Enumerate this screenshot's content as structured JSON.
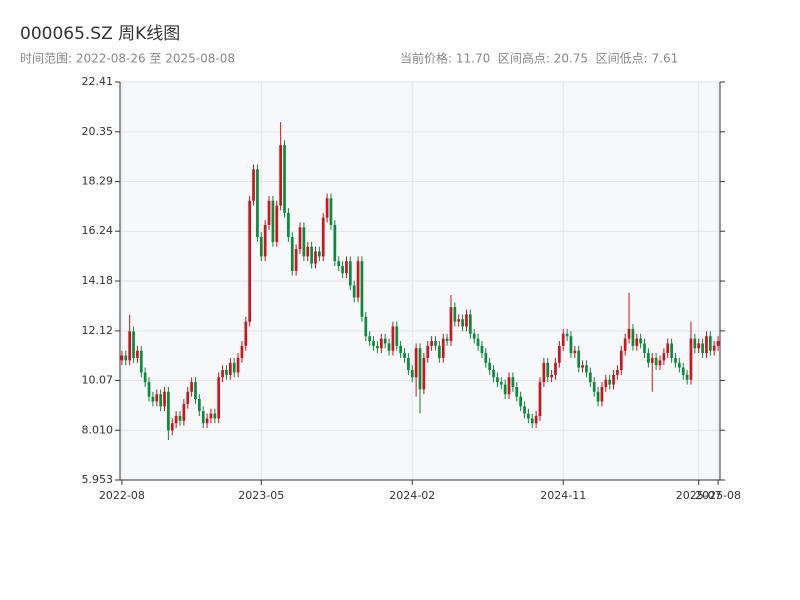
{
  "chart_data": {
    "type": "candlestick",
    "title": "000065.SZ 周K线图",
    "subtitle": "时间范围: 2022-08-26 至 2025-08-08",
    "stats": "当前价格: 11.70  区间高点: 20.75  区间低点: 7.61",
    "up_color": "#c8161d",
    "down_color": "#0b8a3c",
    "grid": true,
    "ylim": [
      5.953,
      22.41
    ],
    "yticks": [
      5.953,
      {
        "value": 8.01,
        "label": "8.010"
      },
      10.07,
      12.12,
      14.18,
      16.24,
      18.29,
      20.35,
      22.41
    ],
    "categories": [
      "2022-08",
      null,
      null,
      null,
      null,
      null,
      null,
      null,
      null,
      null,
      null,
      null,
      null,
      null,
      null,
      null,
      null,
      null,
      null,
      null,
      null,
      null,
      null,
      null,
      null,
      null,
      null,
      null,
      null,
      null,
      null,
      null,
      null,
      null,
      null,
      null,
      "2023-05",
      null,
      null,
      null,
      null,
      null,
      null,
      null,
      null,
      null,
      null,
      null,
      null,
      null,
      null,
      null,
      null,
      null,
      null,
      null,
      null,
      null,
      null,
      null,
      null,
      null,
      null,
      null,
      null,
      null,
      null,
      null,
      null,
      null,
      null,
      null,
      null,
      null,
      null,
      "2024-02",
      null,
      null,
      null,
      null,
      null,
      null,
      null,
      null,
      null,
      null,
      null,
      null,
      null,
      null,
      null,
      null,
      null,
      null,
      null,
      null,
      null,
      null,
      null,
      null,
      null,
      null,
      null,
      null,
      null,
      null,
      null,
      null,
      null,
      null,
      null,
      null,
      null,
      null,
      "2024-11",
      null,
      null,
      null,
      null,
      null,
      null,
      null,
      null,
      null,
      null,
      null,
      null,
      null,
      null,
      null,
      null,
      null,
      null,
      null,
      null,
      null,
      null,
      null,
      null,
      null,
      null,
      null,
      null,
      null,
      null,
      null,
      null,
      null,
      null,
      "2025-07",
      null,
      null,
      null,
      null,
      "2025-08"
    ],
    "open": [
      10.9,
      11.1,
      10.9,
      12.1,
      11.0,
      11.3,
      10.4,
      10.0,
      9.4,
      9.2,
      9.5,
      9.0,
      9.6,
      8.0,
      8.3,
      8.6,
      8.4,
      9.1,
      9.6,
      10.0,
      9.3,
      8.8,
      8.3,
      8.5,
      8.7,
      8.5,
      10.2,
      10.5,
      10.3,
      10.8,
      10.4,
      11.0,
      11.5,
      12.5,
      17.5,
      18.8,
      16.0,
      15.2,
      16.5,
      17.5,
      15.8,
      17.3,
      19.8,
      17.0,
      16.0,
      14.6,
      15.5,
      16.4,
      15.2,
      15.6,
      14.9,
      15.4,
      15.2,
      16.8,
      17.6,
      16.5,
      15.0,
      14.8,
      14.5,
      15.0,
      14.0,
      13.5,
      15.0,
      12.7,
      11.9,
      11.7,
      11.5,
      11.4,
      11.8,
      11.6,
      11.3,
      12.3,
      11.5,
      11.2,
      11.0,
      10.5,
      10.2,
      11.4,
      9.7,
      11.0,
      11.5,
      11.7,
      11.5,
      11.0,
      11.8,
      11.7,
      13.1,
      12.5,
      12.6,
      12.3,
      12.8,
      12.0,
      11.8,
      11.5,
      11.2,
      10.8,
      10.5,
      10.2,
      10.0,
      9.9,
      9.5,
      10.2,
      9.8,
      9.4,
      9.0,
      8.7,
      8.5,
      8.3,
      8.6,
      10.0,
      10.8,
      10.2,
      10.3,
      10.8,
      11.5,
      12.0,
      11.9,
      11.2,
      11.3,
      10.6,
      10.7,
      10.4,
      10.0,
      9.6,
      9.2,
      9.8,
      10.1,
      9.9,
      10.3,
      10.5,
      11.3,
      11.8,
      12.2,
      11.5,
      11.8,
      11.6,
      11.2,
      10.8,
      11.0,
      10.7,
      10.9,
      11.2,
      11.6,
      11.0,
      10.8,
      10.6,
      10.3,
      10.1,
      11.8,
      11.4,
      11.6,
      11.2,
      11.9,
      11.3,
      11.5
    ],
    "close": [
      11.1,
      10.9,
      12.1,
      11.0,
      11.3,
      10.4,
      10.0,
      9.4,
      9.2,
      9.5,
      9.0,
      9.6,
      8.0,
      8.3,
      8.6,
      8.4,
      9.1,
      9.6,
      10.0,
      9.3,
      8.8,
      8.3,
      8.5,
      8.7,
      8.5,
      10.2,
      10.5,
      10.3,
      10.8,
      10.4,
      11.0,
      11.5,
      12.5,
      17.5,
      18.8,
      16.0,
      15.2,
      16.5,
      17.5,
      15.8,
      17.3,
      19.8,
      17.0,
      16.0,
      14.6,
      15.5,
      16.4,
      15.2,
      15.6,
      14.9,
      15.4,
      15.2,
      16.8,
      17.6,
      16.5,
      15.0,
      14.8,
      14.5,
      15.0,
      14.0,
      13.5,
      15.0,
      12.7,
      11.9,
      11.7,
      11.5,
      11.4,
      11.8,
      11.6,
      11.3,
      12.3,
      11.5,
      11.2,
      11.0,
      10.5,
      10.2,
      11.4,
      9.7,
      11.0,
      11.5,
      11.7,
      11.5,
      11.0,
      11.8,
      11.7,
      13.1,
      12.5,
      12.6,
      12.3,
      12.8,
      12.0,
      11.8,
      11.5,
      11.2,
      10.8,
      10.5,
      10.2,
      10.0,
      9.9,
      9.5,
      10.2,
      9.8,
      9.4,
      9.0,
      8.7,
      8.5,
      8.3,
      8.6,
      10.0,
      10.8,
      10.2,
      10.3,
      10.8,
      11.5,
      12.0,
      11.9,
      11.2,
      11.3,
      10.6,
      10.7,
      10.4,
      10.0,
      9.6,
      9.2,
      9.8,
      10.1,
      9.9,
      10.3,
      10.5,
      11.3,
      11.8,
      12.2,
      11.5,
      11.8,
      11.6,
      11.2,
      10.8,
      11.0,
      10.7,
      10.9,
      11.2,
      11.6,
      11.0,
      10.8,
      10.6,
      10.3,
      10.1,
      11.8,
      11.4,
      11.6,
      11.2,
      11.9,
      11.3,
      11.5,
      11.7
    ],
    "high": [
      11.3,
      11.3,
      12.8,
      12.3,
      11.5,
      11.5,
      10.6,
      10.2,
      9.6,
      9.7,
      9.7,
      9.8,
      9.8,
      8.5,
      8.8,
      8.8,
      9.3,
      9.8,
      10.2,
      10.2,
      9.5,
      9.0,
      8.7,
      8.9,
      8.9,
      10.4,
      10.7,
      10.7,
      11.0,
      11.0,
      11.2,
      11.7,
      12.7,
      17.7,
      19.0,
      19.0,
      16.2,
      16.7,
      17.7,
      17.7,
      17.5,
      20.75,
      20.0,
      17.2,
      16.2,
      15.7,
      16.6,
      16.6,
      15.8,
      15.8,
      15.6,
      15.6,
      17.0,
      17.8,
      17.8,
      16.7,
      15.2,
      15.0,
      15.2,
      15.2,
      14.2,
      15.2,
      15.2,
      12.9,
      12.1,
      11.9,
      11.7,
      12.0,
      12.0,
      11.8,
      12.5,
      12.5,
      11.7,
      11.4,
      11.2,
      10.7,
      11.6,
      11.6,
      11.2,
      11.7,
      11.9,
      11.9,
      11.7,
      12.0,
      12.0,
      13.6,
      13.3,
      12.8,
      12.8,
      13.0,
      13.0,
      12.2,
      12.0,
      11.7,
      11.4,
      11.0,
      10.7,
      10.4,
      10.2,
      10.1,
      10.4,
      10.4,
      10.0,
      9.6,
      9.2,
      8.9,
      8.7,
      8.8,
      10.2,
      11.0,
      11.0,
      10.5,
      11.0,
      11.7,
      12.2,
      12.2,
      12.1,
      11.5,
      11.5,
      10.9,
      10.9,
      10.6,
      10.2,
      9.8,
      10.0,
      10.3,
      10.3,
      10.5,
      10.7,
      11.5,
      12.0,
      13.7,
      12.4,
      12.0,
      12.0,
      11.8,
      11.4,
      11.2,
      11.2,
      11.1,
      11.4,
      11.8,
      11.8,
      11.2,
      11.0,
      10.8,
      10.5,
      12.5,
      12.0,
      11.8,
      11.8,
      12.1,
      12.1,
      11.7,
      11.9
    ],
    "low": [
      10.7,
      10.7,
      10.7,
      10.8,
      10.8,
      10.2,
      9.8,
      9.2,
      9.0,
      9.0,
      8.8,
      8.8,
      7.61,
      7.8,
      8.1,
      8.2,
      8.2,
      8.9,
      9.4,
      9.1,
      8.6,
      8.1,
      8.1,
      8.3,
      8.3,
      8.3,
      10.0,
      10.1,
      10.1,
      10.2,
      10.2,
      10.8,
      11.3,
      12.3,
      17.3,
      15.8,
      15.0,
      15.0,
      16.3,
      15.6,
      15.6,
      17.1,
      16.8,
      15.8,
      14.4,
      14.4,
      15.3,
      15.0,
      15.0,
      14.7,
      14.7,
      15.0,
      15.0,
      16.6,
      16.3,
      14.8,
      14.6,
      14.3,
      14.3,
      13.8,
      13.3,
      13.3,
      12.5,
      11.7,
      11.5,
      11.3,
      11.2,
      11.2,
      11.4,
      11.1,
      11.1,
      11.3,
      11.0,
      10.8,
      10.3,
      10.0,
      9.4,
      8.7,
      9.5,
      10.8,
      11.3,
      11.3,
      10.8,
      10.8,
      11.5,
      11.5,
      12.3,
      12.3,
      12.1,
      12.1,
      11.8,
      11.6,
      11.3,
      11.0,
      10.6,
      10.3,
      10.0,
      9.8,
      9.7,
      9.3,
      9.3,
      9.6,
      9.2,
      8.8,
      8.5,
      8.3,
      8.1,
      8.1,
      8.4,
      9.8,
      10.0,
      10.0,
      10.1,
      10.6,
      11.3,
      11.7,
      11.0,
      11.0,
      10.4,
      10.4,
      10.2,
      9.8,
      9.4,
      9.0,
      9.0,
      9.6,
      9.7,
      9.7,
      10.1,
      10.3,
      11.1,
      11.6,
      11.3,
      11.3,
      11.4,
      11.0,
      10.6,
      9.6,
      10.5,
      10.5,
      10.7,
      11.0,
      10.8,
      10.6,
      10.4,
      10.1,
      9.9,
      9.9,
      11.2,
      11.2,
      11.0,
      11.0,
      11.1,
      11.1,
      11.3
    ]
  }
}
